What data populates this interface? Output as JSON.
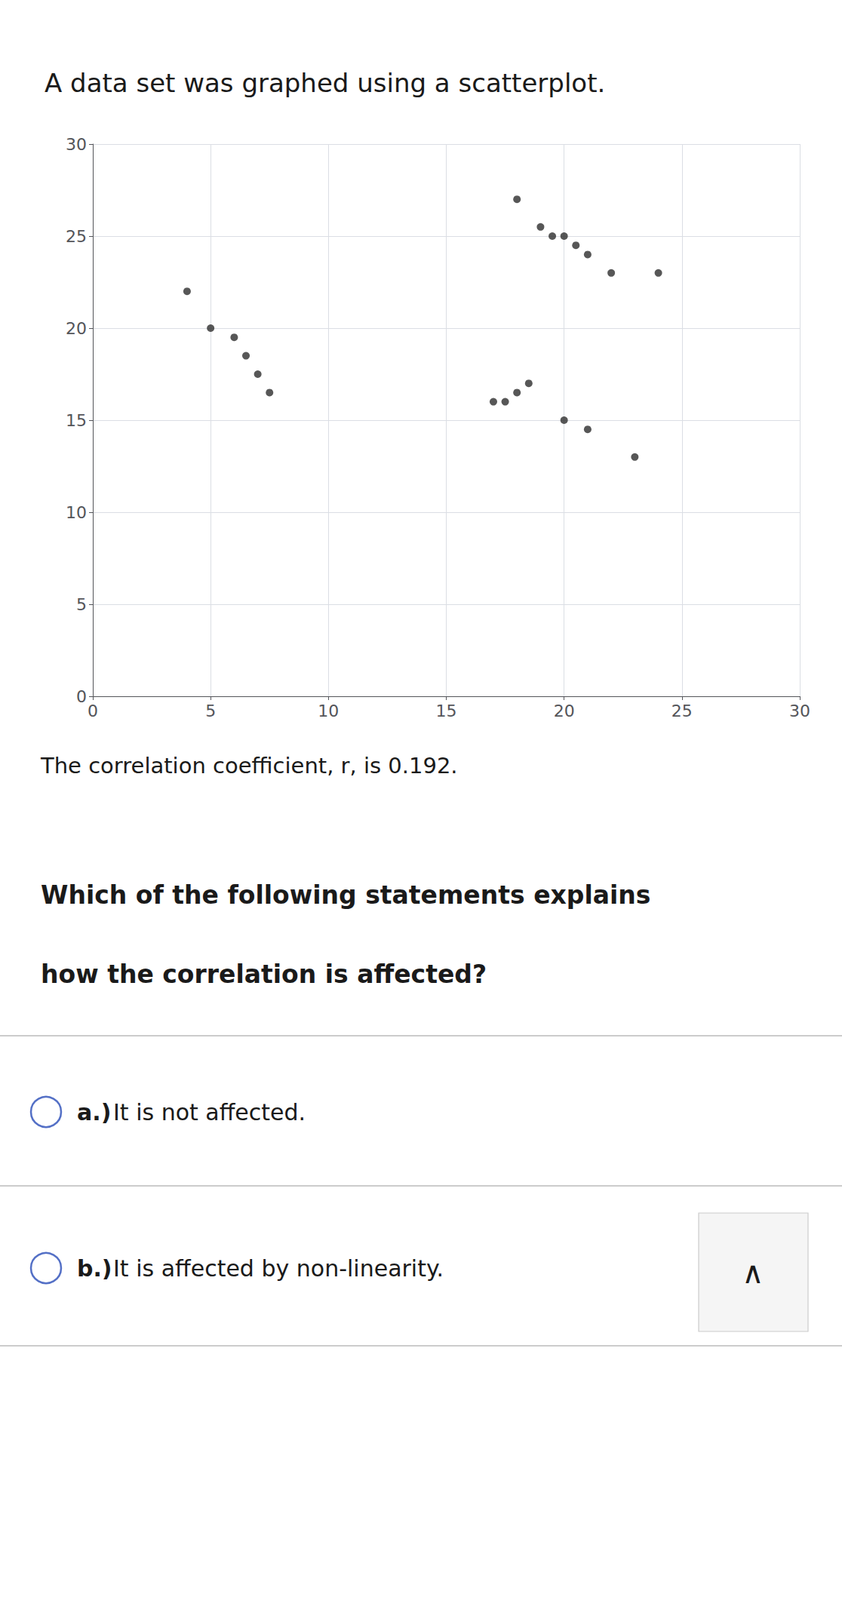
{
  "chart_data": {
    "type": "scatter",
    "title": "A data set was graphed using a scatterplot.",
    "x": [
      4,
      5,
      6,
      6.5,
      7,
      7.5,
      17,
      17.5,
      18,
      18.5,
      18,
      19,
      19.5,
      20,
      20.5,
      21,
      22,
      24,
      20,
      21,
      23
    ],
    "values": [
      22,
      20,
      19.5,
      18.5,
      17.5,
      16.5,
      16,
      16,
      16.5,
      17,
      27,
      25.5,
      25,
      25,
      24.5,
      24,
      23,
      23,
      15,
      14.5,
      13
    ],
    "color": "#2d2d2d",
    "marker": "circle",
    "xlim": [
      0,
      30
    ],
    "ylim": [
      0,
      30
    ],
    "xticks": [
      0,
      5,
      10,
      15,
      20,
      25,
      30
    ],
    "yticks": [
      0,
      5,
      10,
      15,
      20,
      25,
      30
    ],
    "grid": true,
    "annotations": [
      "The correlation coefficient, r, is 0.192.",
      "Which of the following statements explains",
      "how the correlation is affected?",
      "a.)",
      "It is not affected.",
      "b.)",
      "It is affected by non-linearity.",
      "∧"
    ]
  }
}
